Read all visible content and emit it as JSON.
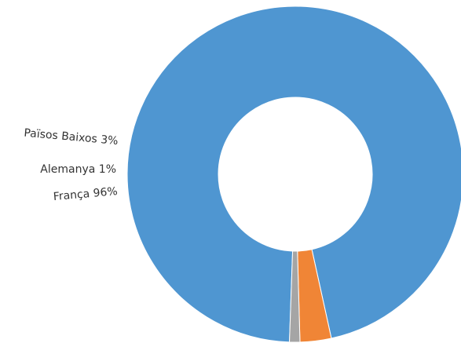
{
  "chart_data": {
    "type": "pie",
    "variant": "donut",
    "categories": [
      "França",
      "Països Baixos",
      "Alemanya"
    ],
    "values": [
      96,
      3,
      1
    ],
    "colors": [
      "#4f96d1",
      "#f08536",
      "#a5a5a5"
    ],
    "labels": [
      "França 96%",
      "Països Baixos 3%",
      "Alemanya 1%"
    ],
    "title": "",
    "legend": "none"
  }
}
